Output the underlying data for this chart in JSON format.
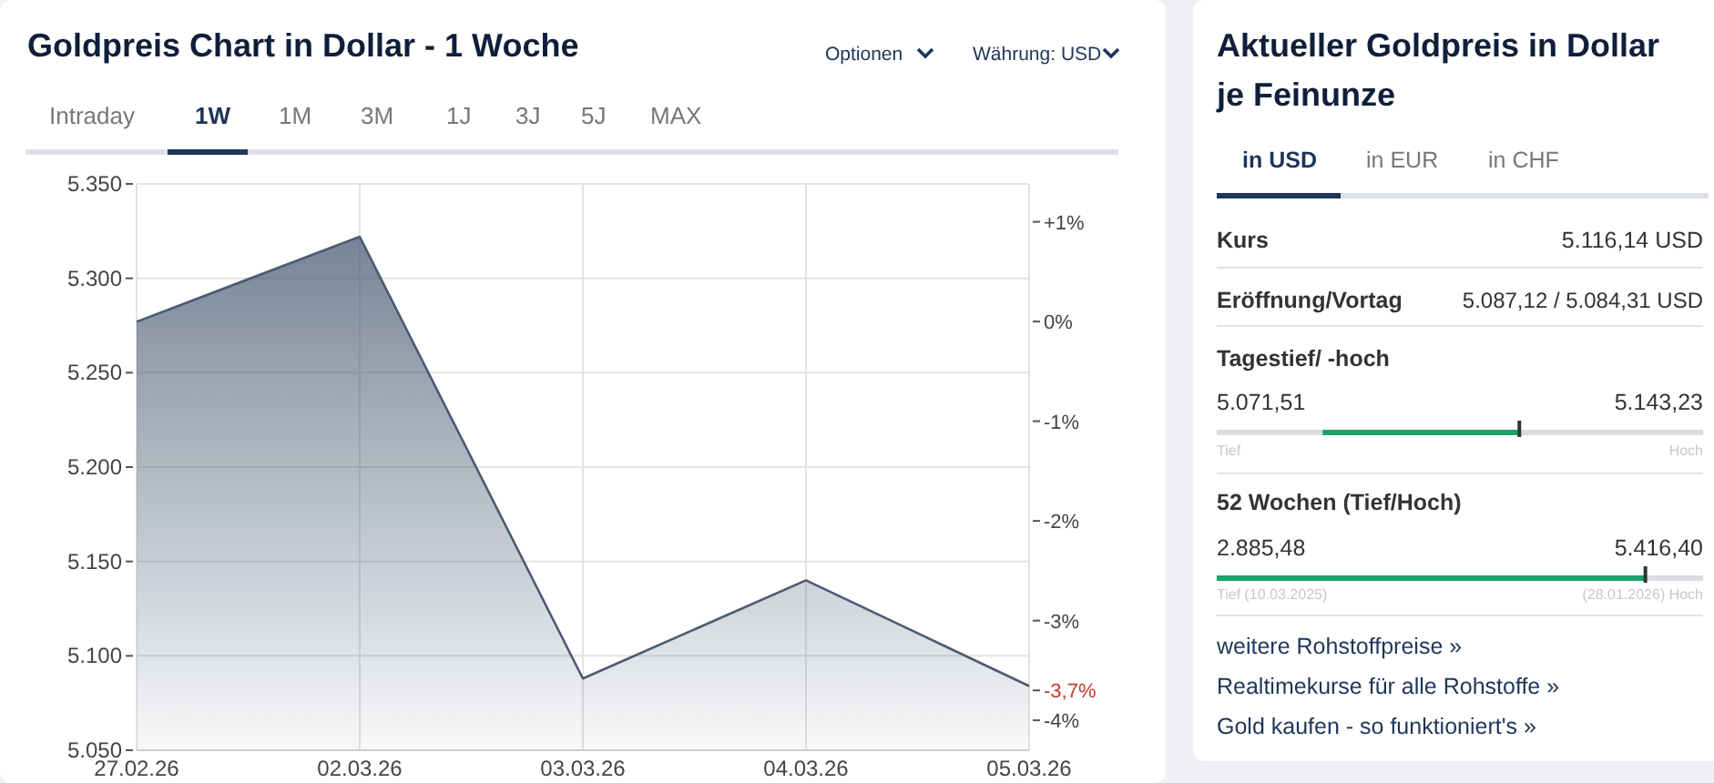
{
  "chart_data": [
    {
      "type": "area",
      "title": "Goldpreis Chart in Dollar - 1 Woche",
      "categories": [
        "27.02.26",
        "02.03.26",
        "03.03.26",
        "04.03.26",
        "05.03.26"
      ],
      "series": [
        {
          "color": "#4a5b73",
          "values": [
            5277,
            5322,
            5088,
            5140,
            5084
          ]
        }
      ],
      "ylim": [
        5050,
        5350
      ],
      "yticks": [
        {
          "value": 5050,
          "label": "5.050"
        },
        {
          "value": 5100,
          "label": "5.100"
        },
        {
          "value": 5150,
          "label": "5.150"
        },
        {
          "value": 5200,
          "label": "5.200"
        },
        {
          "value": 5250,
          "label": "5.250"
        },
        {
          "value": 5300,
          "label": "5.300"
        },
        {
          "value": 5350,
          "label": "5.350"
        }
      ],
      "y2lim": [
        -4.3,
        1.38
      ],
      "y2ticks": [
        {
          "value": 1,
          "label": "+1%"
        },
        {
          "value": 0,
          "label": "0%"
        },
        {
          "value": -1,
          "label": "-1%"
        },
        {
          "value": -2,
          "label": "-2%"
        },
        {
          "value": -3,
          "label": "-3%"
        },
        {
          "value": -3.7,
          "label": "-3,7%"
        },
        {
          "value": -4,
          "label": "-4%"
        }
      ],
      "grid": true,
      "annotations": [
        "Optionen",
        "Währung: USD",
        "Intraday",
        "1W",
        "1M",
        "3M",
        "1J",
        "3J",
        "5J",
        "MAX"
      ]
    },
    {
      "type": "other",
      "title": "Aktueller Goldpreis in Dollar je Feinunze",
      "annotations": [
        "in USD",
        "in EUR",
        "in CHF",
        "Kurs",
        "5.116,14 USD",
        "Eröffnung/Vortag",
        "5.087,12 / 5.084,31 USD",
        "Tagestief/ -hoch",
        "5.071,51",
        "5.143,23",
        "Tief",
        "Hoch",
        "52 Wochen (Tief/Hoch)",
        "2.885,48",
        "5.416,40",
        "Tief (10.03.2025)",
        "(28.01.2026) Hoch",
        "weitere Rohstoffpreise »",
        "Realtimekurse für alle Rohstoffe »",
        "Gold kaufen - so funktioniert's »"
      ]
    }
  ]
}
